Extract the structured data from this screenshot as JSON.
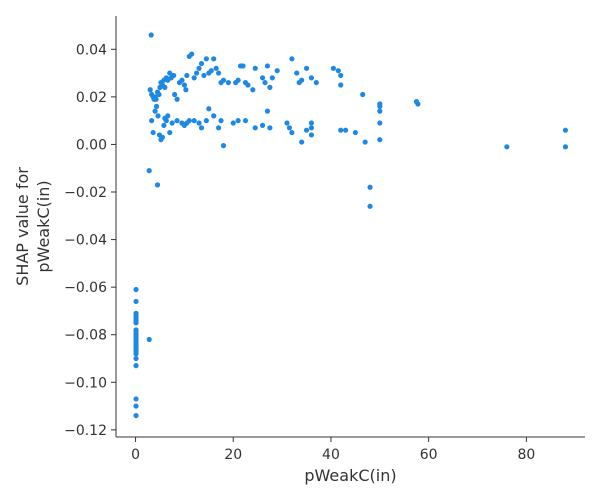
{
  "chart_data": {
    "type": "scatter",
    "xlabel": "pWeakC(in)",
    "ylabel_lines": [
      "SHAP value for",
      "pWeakC(in)"
    ],
    "xlim": [
      -4,
      92
    ],
    "ylim": [
      -0.123,
      0.054
    ],
    "xticks": [
      0,
      20,
      40,
      60,
      80
    ],
    "xtick_labels": [
      "0",
      "20",
      "40",
      "60",
      "80"
    ],
    "yticks": [
      -0.12,
      -0.1,
      -0.08,
      -0.06,
      -0.04,
      -0.02,
      0.0,
      0.02,
      0.04
    ],
    "ytick_labels": [
      "−0.12",
      "−0.10",
      "−0.08",
      "−0.06",
      "−0.04",
      "−0.02",
      "0.00",
      "0.02",
      "0.04"
    ],
    "grid": false,
    "marker_color": "#1e88e5",
    "points": [
      [
        0.1,
        -0.061
      ],
      [
        0.1,
        -0.066
      ],
      [
        0.1,
        -0.071
      ],
      [
        0.1,
        -0.072
      ],
      [
        0.1,
        -0.073
      ],
      [
        0.1,
        -0.074
      ],
      [
        0.1,
        -0.075
      ],
      [
        0.1,
        -0.078
      ],
      [
        0.1,
        -0.079
      ],
      [
        0.1,
        -0.08
      ],
      [
        0.1,
        -0.081
      ],
      [
        0.1,
        -0.082
      ],
      [
        0.1,
        -0.083
      ],
      [
        0.1,
        -0.084
      ],
      [
        0.1,
        -0.085
      ],
      [
        0.1,
        -0.086
      ],
      [
        0.1,
        -0.087
      ],
      [
        0.1,
        -0.088
      ],
      [
        0.1,
        -0.09
      ],
      [
        0.1,
        -0.093
      ],
      [
        0.1,
        -0.107
      ],
      [
        0.1,
        -0.11
      ],
      [
        0.1,
        -0.114
      ],
      [
        2.8,
        -0.082
      ],
      [
        2.8,
        -0.011
      ],
      [
        4.5,
        -0.017
      ],
      [
        3.2,
        0.046
      ],
      [
        3.0,
        0.023
      ],
      [
        3.3,
        0.021
      ],
      [
        3.6,
        0.02
      ],
      [
        3.8,
        0.019
      ],
      [
        4.0,
        0.02
      ],
      [
        4.2,
        0.019
      ],
      [
        4.5,
        0.022
      ],
      [
        4.8,
        0.021
      ],
      [
        5.0,
        0.024
      ],
      [
        5.2,
        0.026
      ],
      [
        5.5,
        0.025
      ],
      [
        5.8,
        0.027
      ],
      [
        6.0,
        0.024
      ],
      [
        6.3,
        0.028
      ],
      [
        6.6,
        0.027
      ],
      [
        7.0,
        0.03
      ],
      [
        7.3,
        0.028
      ],
      [
        7.8,
        0.029
      ],
      [
        8.0,
        0.021
      ],
      [
        8.5,
        0.019
      ],
      [
        9.0,
        0.026
      ],
      [
        9.5,
        0.027
      ],
      [
        10.0,
        0.025
      ],
      [
        10.3,
        0.023
      ],
      [
        10.5,
        0.029
      ],
      [
        11.0,
        0.037
      ],
      [
        11.5,
        0.038
      ],
      [
        12.0,
        0.028
      ],
      [
        12.5,
        0.03
      ],
      [
        13.0,
        0.032
      ],
      [
        13.5,
        0.034
      ],
      [
        14.0,
        0.029
      ],
      [
        14.5,
        0.036
      ],
      [
        15.0,
        0.03
      ],
      [
        15.5,
        0.031
      ],
      [
        16.0,
        0.036
      ],
      [
        16.5,
        0.032
      ],
      [
        17.0,
        0.03
      ],
      [
        17.5,
        0.026
      ],
      [
        18.0,
        0.027
      ],
      [
        19.0,
        0.026
      ],
      [
        20.5,
        0.026
      ],
      [
        21.0,
        0.027
      ],
      [
        21.5,
        0.033
      ],
      [
        22.0,
        0.033
      ],
      [
        22.5,
        0.026
      ],
      [
        23.0,
        0.025
      ],
      [
        24.0,
        0.023
      ],
      [
        24.5,
        0.032
      ],
      [
        26.0,
        0.028
      ],
      [
        26.5,
        0.026
      ],
      [
        27.0,
        0.033
      ],
      [
        27.5,
        0.024
      ],
      [
        28.0,
        0.028
      ],
      [
        29.0,
        0.031
      ],
      [
        32.0,
        0.036
      ],
      [
        33.0,
        0.03
      ],
      [
        33.5,
        0.026
      ],
      [
        34.0,
        0.027
      ],
      [
        35.0,
        0.032
      ],
      [
        36.0,
        0.028
      ],
      [
        37.0,
        0.026
      ],
      [
        40.5,
        0.032
      ],
      [
        41.5,
        0.031
      ],
      [
        42.0,
        0.029
      ],
      [
        42.0,
        0.025
      ],
      [
        46.5,
        0.021
      ],
      [
        57.5,
        0.018
      ],
      [
        57.8,
        0.017
      ],
      [
        3.3,
        0.01
      ],
      [
        3.6,
        0.005
      ],
      [
        4.0,
        0.014
      ],
      [
        4.3,
        0.016
      ],
      [
        4.6,
        0.012
      ],
      [
        4.9,
        0.004
      ],
      [
        5.2,
        0.002
      ],
      [
        5.5,
        0.003
      ],
      [
        5.8,
        0.008
      ],
      [
        6.0,
        0.011
      ],
      [
        6.3,
        0.01
      ],
      [
        6.6,
        0.012
      ],
      [
        7.0,
        0.005
      ],
      [
        7.5,
        0.009
      ],
      [
        8.5,
        0.01
      ],
      [
        9.5,
        0.009
      ],
      [
        10.0,
        0.008
      ],
      [
        10.5,
        0.009
      ],
      [
        11.0,
        0.01
      ],
      [
        12.0,
        0.01
      ],
      [
        13.0,
        0.009
      ],
      [
        13.5,
        0.007
      ],
      [
        14.5,
        0.01
      ],
      [
        15.0,
        0.015
      ],
      [
        16.0,
        0.012
      ],
      [
        17.0,
        0.007
      ],
      [
        17.5,
        0.01
      ],
      [
        18.0,
        -0.0005
      ],
      [
        20.0,
        0.009
      ],
      [
        21.0,
        0.01
      ],
      [
        22.5,
        0.01
      ],
      [
        24.5,
        0.007
      ],
      [
        26.0,
        0.008
      ],
      [
        27.0,
        0.014
      ],
      [
        27.5,
        0.007
      ],
      [
        31.0,
        0.009
      ],
      [
        31.5,
        0.007
      ],
      [
        32.0,
        0.005
      ],
      [
        34.0,
        0.001
      ],
      [
        35.0,
        0.006
      ],
      [
        36.0,
        0.004
      ],
      [
        36.0,
        0.007
      ],
      [
        36.0,
        0.009
      ],
      [
        42.0,
        0.006
      ],
      [
        43.0,
        0.006
      ],
      [
        45.0,
        0.005
      ],
      [
        47.0,
        0.001
      ],
      [
        50.0,
        0.002
      ],
      [
        50.0,
        0.009
      ],
      [
        50.0,
        0.014
      ],
      [
        50.0,
        0.016
      ],
      [
        50.0,
        0.017
      ],
      [
        48.0,
        -0.018
      ],
      [
        48.0,
        -0.026
      ],
      [
        76.0,
        -0.001
      ],
      [
        88.0,
        0.006
      ],
      [
        88.0,
        -0.001
      ]
    ]
  }
}
